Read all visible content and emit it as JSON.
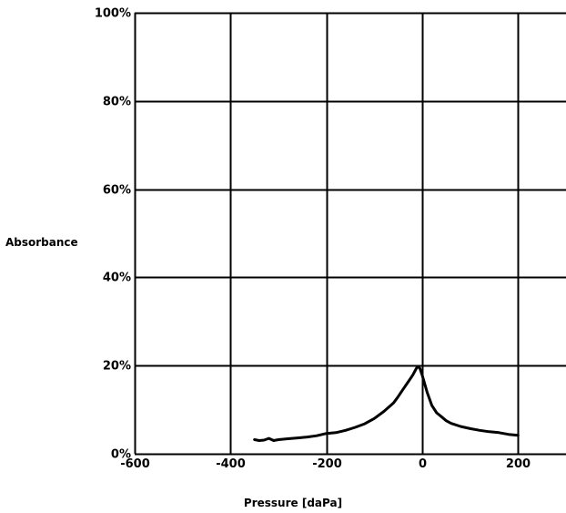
{
  "chart_data": {
    "type": "line",
    "xlabel": "Pressure [daPa]",
    "ylabel": "Absorbance",
    "xlim": [
      -600,
      300
    ],
    "ylim": [
      0,
      100
    ],
    "x_ticks": [
      -600,
      -400,
      -200,
      0,
      200
    ],
    "x_tick_labels": [
      "-600",
      "-400",
      "-200",
      "0",
      "200"
    ],
    "y_ticks": [
      0,
      20,
      40,
      60,
      80,
      100
    ],
    "y_tick_labels": [
      "0%",
      "20%",
      "40%",
      "60%",
      "80%",
      "100%"
    ],
    "grid": true,
    "line_color": "#000000",
    "grid_color": "#000000",
    "series": [
      {
        "x": [
          -350,
          -340,
          -330,
          -320,
          -310,
          -300,
          -280,
          -260,
          -240,
          -220,
          -200,
          -180,
          -160,
          -140,
          -120,
          -100,
          -80,
          -60,
          -50,
          -40,
          -30,
          -20,
          -15,
          -10,
          -5,
          0,
          10,
          20,
          30,
          40,
          50,
          60,
          80,
          100,
          120,
          140,
          160,
          180,
          200
        ],
        "y": [
          3.2,
          3.0,
          3.1,
          3.5,
          3.0,
          3.2,
          3.4,
          3.6,
          3.8,
          4.1,
          4.6,
          4.8,
          5.3,
          6.0,
          6.8,
          8.0,
          9.6,
          11.5,
          13.0,
          14.6,
          16.2,
          17.8,
          18.8,
          19.8,
          19.4,
          17.8,
          14.0,
          11.0,
          9.3,
          8.4,
          7.5,
          6.9,
          6.2,
          5.7,
          5.3,
          5.0,
          4.8,
          4.4,
          4.2
        ]
      }
    ]
  }
}
